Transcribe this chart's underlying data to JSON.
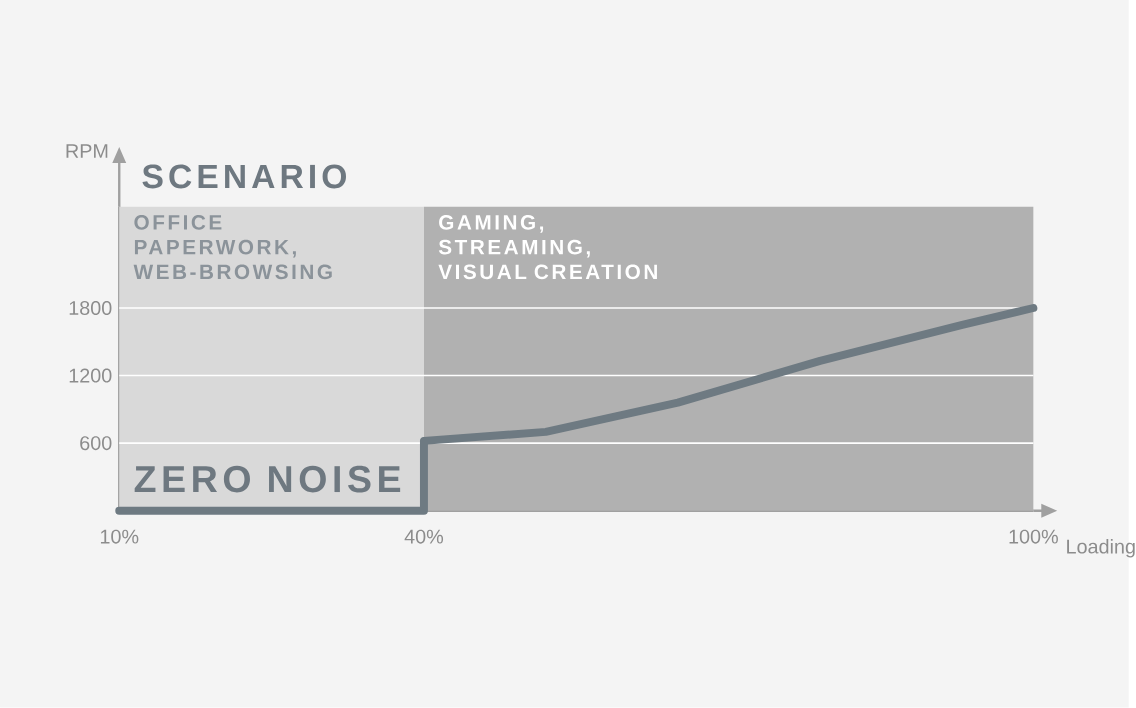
{
  "chart_data": {
    "type": "line",
    "title": "SCENARIO",
    "ylabel": "RPM",
    "xlabel": "Loading",
    "xlim": [
      10,
      100
    ],
    "ylim": [
      0,
      2700
    ],
    "xticks": [
      {
        "value": 10,
        "label": "10%"
      },
      {
        "value": 40,
        "label": "40%"
      },
      {
        "value": 100,
        "label": "100%"
      }
    ],
    "yticks": [
      600,
      1200,
      1800
    ],
    "grid": "y",
    "series": [
      {
        "color": "#6e7a82",
        "x": [
          10,
          40,
          40,
          52,
          65,
          79,
          93,
          100
        ],
        "values": [
          0,
          0,
          620,
          700,
          960,
          1330,
          1650,
          1800
        ]
      }
    ],
    "bands": [
      {
        "axis": "x",
        "from": 10,
        "to": 40,
        "label": "OFFICE PAPERWORK, WEB-BROWSING",
        "color": "#d9d9d9"
      },
      {
        "axis": "x",
        "from": 40,
        "to": 100,
        "label": "GAMING, STREAMING, VISUAL CREATION",
        "color": "#b1b1b1"
      }
    ],
    "annotations": [
      "ZERO NOISE"
    ]
  }
}
